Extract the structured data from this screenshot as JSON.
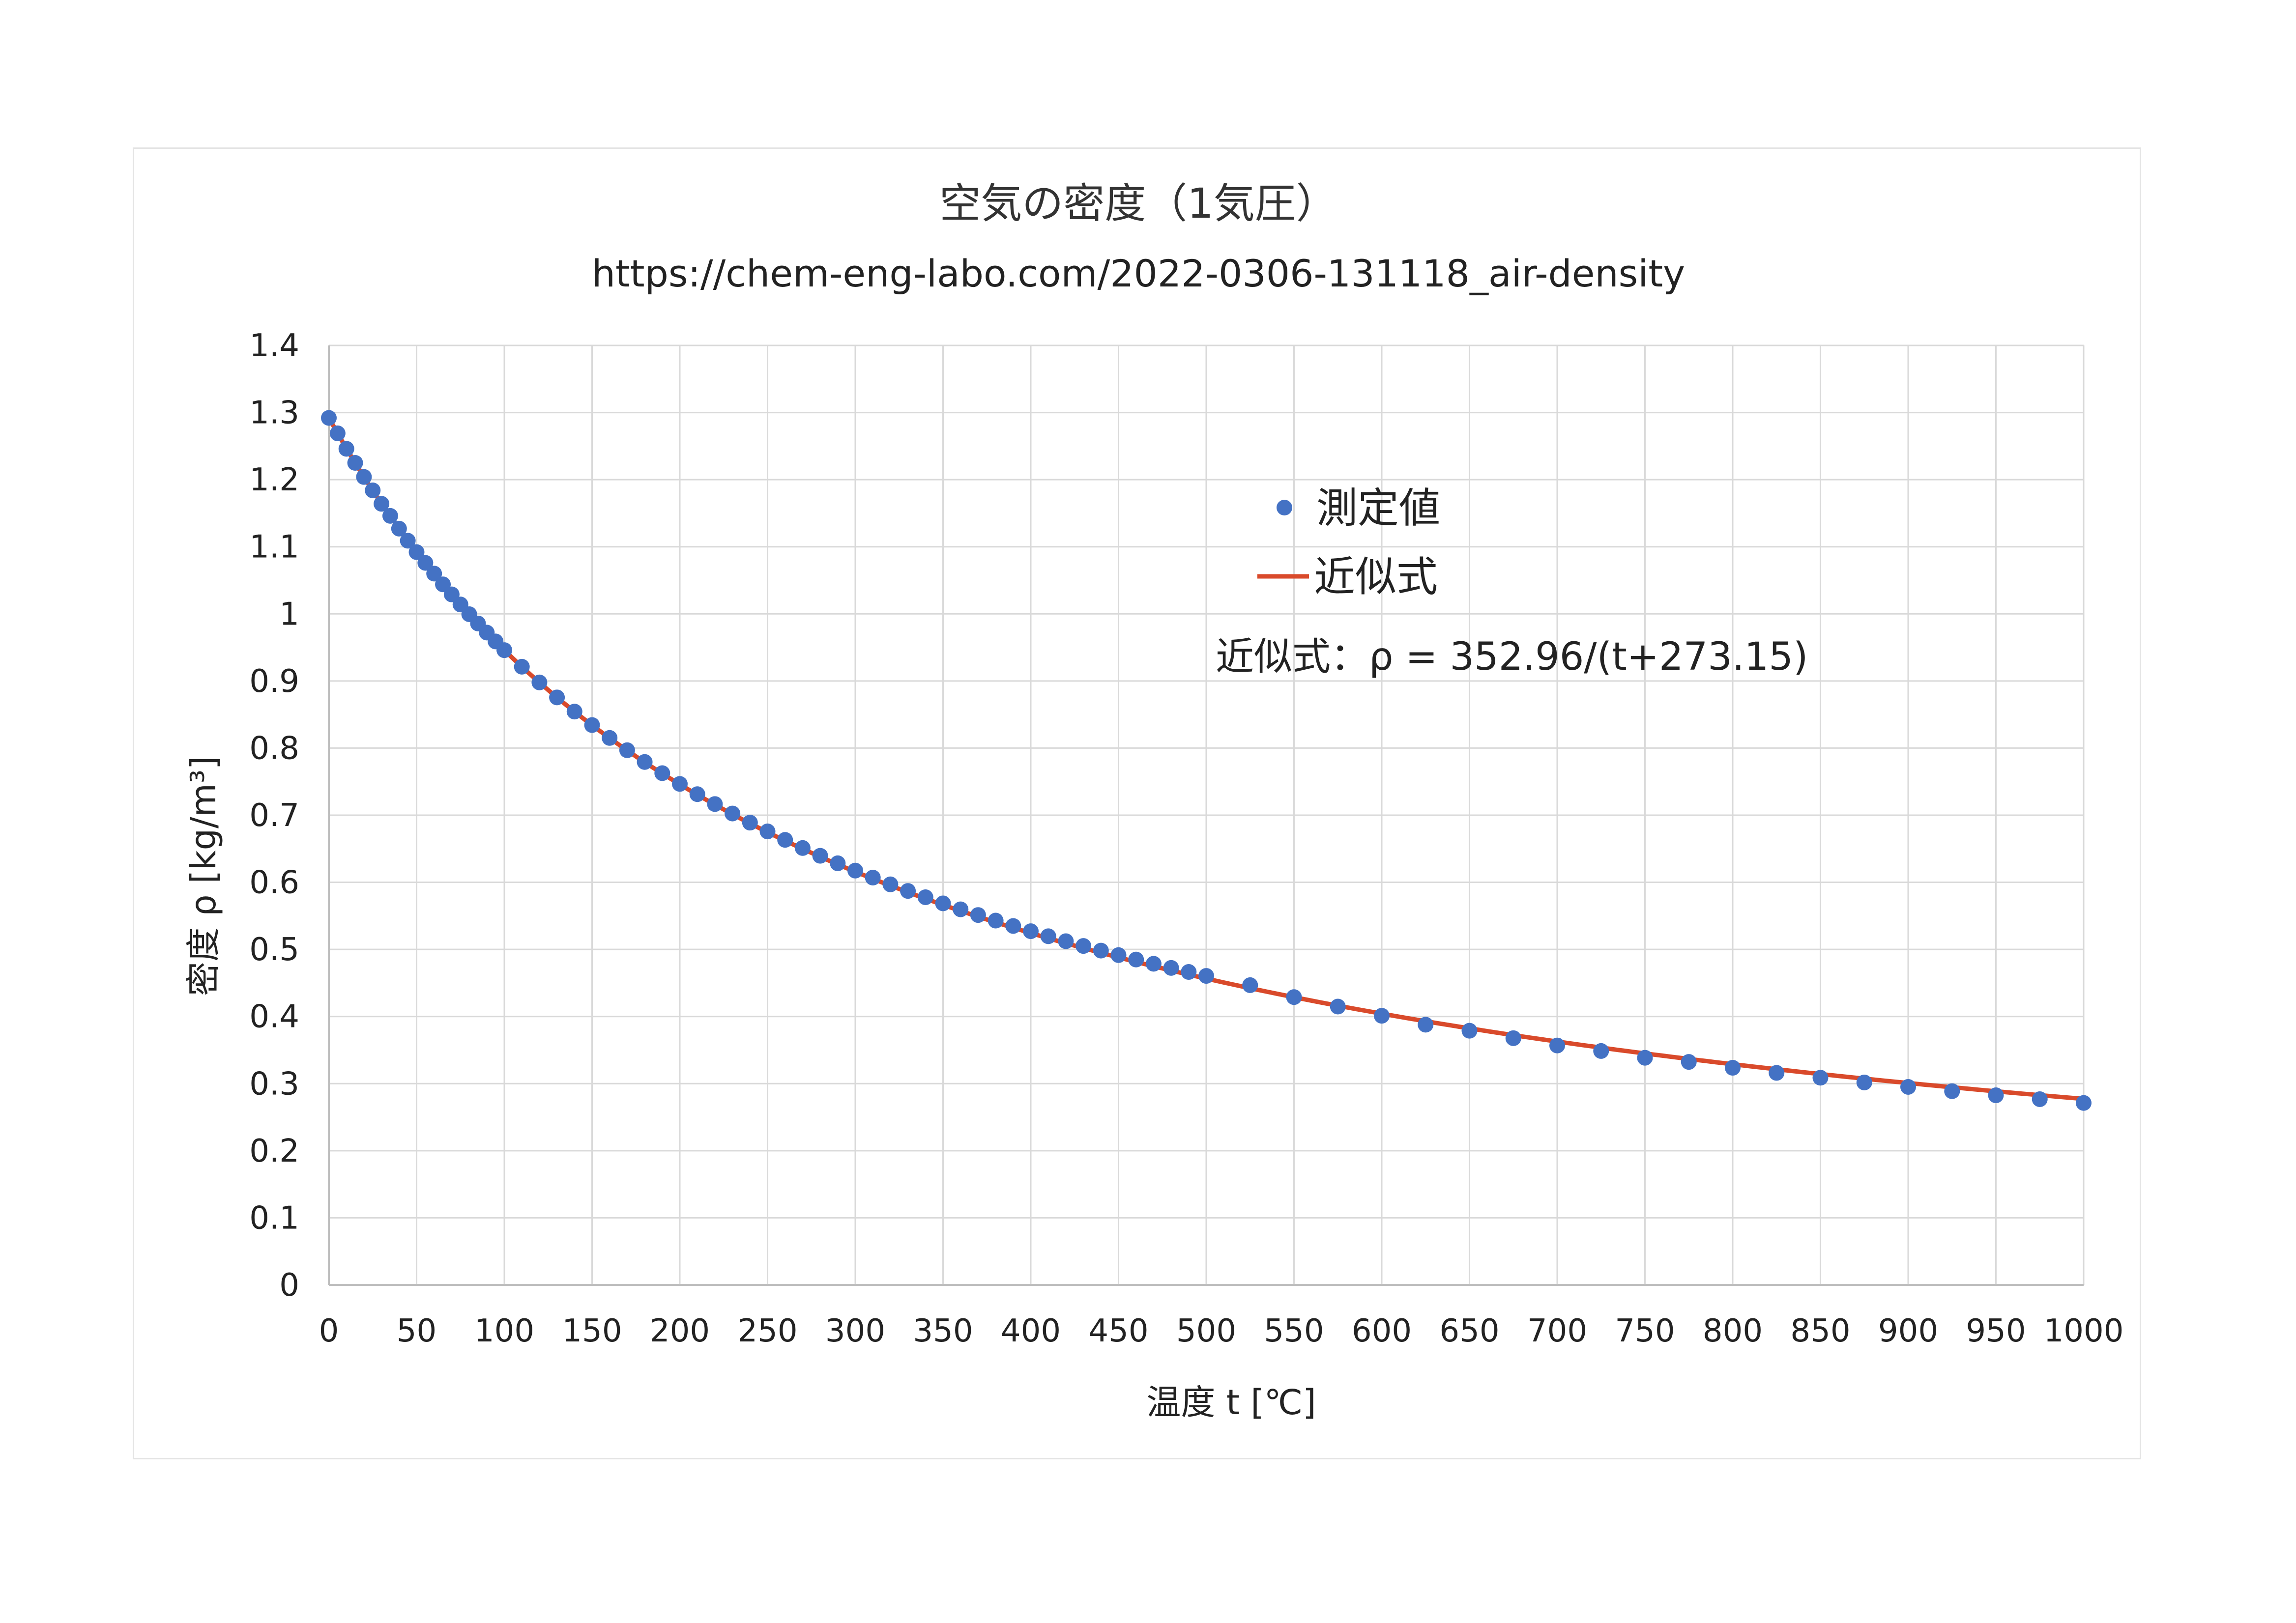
{
  "chart_data": {
    "type": "scatter",
    "title": "空気の密度（1気圧）",
    "subtitle": "https://chem-eng-labo.com/2022-0306-131118_air-density",
    "xlabel": "温度  t  [℃]",
    "ylabel": "密度 ρ [kg/m³]",
    "xlim": [
      0,
      1000
    ],
    "ylim": [
      0,
      1.4
    ],
    "x_ticks": [
      "0",
      "50",
      "100",
      "150",
      "200",
      "250",
      "300",
      "350",
      "400",
      "450",
      "500",
      "550",
      "600",
      "650",
      "700",
      "750",
      "800",
      "850",
      "900",
      "950",
      "1000"
    ],
    "y_ticks": [
      "0",
      "0.1",
      "0.2",
      "0.3",
      "0.4",
      "0.5",
      "0.6",
      "0.7",
      "0.8",
      "0.9",
      "1",
      "1.1",
      "1.2",
      "1.3",
      "1.4"
    ],
    "grid": true,
    "legend_position": "center-right",
    "equation_label": "近似式：ρ = 352.96/(t+273.15)",
    "series": [
      {
        "name": "測定値",
        "kind": "points",
        "color": "#4472c4",
        "x": [
          0,
          5,
          10,
          15,
          20,
          25,
          30,
          35,
          40,
          45,
          50,
          55,
          60,
          65,
          70,
          75,
          80,
          85,
          90,
          95,
          100,
          110,
          120,
          130,
          140,
          150,
          160,
          170,
          180,
          190,
          200,
          210,
          220,
          230,
          240,
          250,
          260,
          270,
          280,
          290,
          300,
          310,
          320,
          330,
          340,
          350,
          360,
          370,
          380,
          390,
          400,
          410,
          420,
          430,
          440,
          450,
          460,
          470,
          480,
          490,
          500,
          525,
          550,
          575,
          600,
          625,
          650,
          675,
          700,
          725,
          750,
          775,
          800,
          825,
          850,
          875,
          900,
          925,
          950,
          975,
          1000
        ],
        "y": [
          1.292,
          1.269,
          1.246,
          1.225,
          1.204,
          1.184,
          1.164,
          1.146,
          1.127,
          1.109,
          1.092,
          1.076,
          1.06,
          1.044,
          1.029,
          1.014,
          0.9995,
          0.9857,
          0.9721,
          0.9589,
          0.9459,
          0.9212,
          0.8978,
          0.8755,
          0.8544,
          0.8343,
          0.8151,
          0.7968,
          0.7793,
          0.7626,
          0.7466,
          0.7313,
          0.7166,
          0.7025,
          0.6889,
          0.6758,
          0.6632,
          0.6511,
          0.6395,
          0.6283,
          0.6174,
          0.607,
          0.5969,
          0.5871,
          0.5777,
          0.5686,
          0.5597,
          0.5512,
          0.5429,
          0.5349,
          0.5271,
          0.5196,
          0.5122,
          0.5051,
          0.4982,
          0.4915,
          0.4849,
          0.4786,
          0.4724,
          0.4664,
          0.4605,
          0.4467,
          0.4289,
          0.4148,
          0.4011,
          0.3878,
          0.3788,
          0.3677,
          0.3568,
          0.3486,
          0.3385,
          0.3323,
          0.3236,
          0.316,
          0.3088,
          0.3017,
          0.2951,
          0.2887,
          0.2826,
          0.2768,
          0.2712
        ]
      },
      {
        "name": "近似式",
        "kind": "line",
        "color": "#d94a2b",
        "formula": "ρ = 352.96/(t+273.15)"
      }
    ]
  }
}
